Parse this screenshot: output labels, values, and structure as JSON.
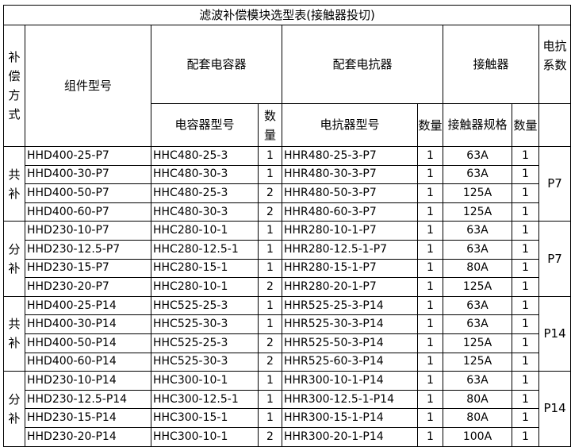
{
  "title": "滤波补偿模块选型表(接触器投切)",
  "headers": {
    "mode": "补偿方式",
    "model": "组件型号",
    "capacitor_group": "配套电容器",
    "reactor_group": "配套电抗器",
    "contactor_group": "接触器",
    "coefficient": "电抗系数",
    "capacitor_model": "电容器型号",
    "qty": "数量",
    "reactor_model": "电抗器型号",
    "contactor_spec": "接触器规格"
  },
  "groups": [
    {
      "mode": "共补",
      "coefficient": "P7",
      "rows": [
        [
          "HHD400-25-P7",
          "HHC480-25-3",
          "1",
          "HHR480-25-3-P7",
          "1",
          "63A",
          "1"
        ],
        [
          "HHD400-30-P7",
          "HHC480-30-3",
          "1",
          "HHR480-30-3-P7",
          "1",
          "63A",
          "1"
        ],
        [
          "HHD400-50-P7",
          "HHC480-25-3",
          "2",
          "HHR480-50-3-P7",
          "1",
          "125A",
          "1"
        ],
        [
          "HHD400-60-P7",
          "HHC480-30-3",
          "2",
          "HHR480-60-3-P7",
          "1",
          "125A",
          "1"
        ]
      ]
    },
    {
      "mode": "分补",
      "coefficient": "P7",
      "rows": [
        [
          "HHD230-10-P7",
          "HHC280-10-1",
          "1",
          "HHR280-10-1-P7",
          "1",
          "63A",
          "1"
        ],
        [
          "HHD230-12.5-P7",
          "HHC280-12.5-1",
          "1",
          "HHR280-12.5-1-P7",
          "1",
          "63A",
          "1"
        ],
        [
          "HHD230-15-P7",
          "HHC280-15-1",
          "1",
          "HHR280-15-1-P7",
          "1",
          "80A",
          "1"
        ],
        [
          "HHD230-20-P7",
          "HHC280-10-1",
          "2",
          "HHR280-20-1-P7",
          "1",
          "125A",
          "1"
        ]
      ]
    },
    {
      "mode": "共补",
      "coefficient": "P14",
      "rows": [
        [
          "HHD400-25-P14",
          "HHC525-25-3",
          "1",
          "HHR525-25-3-P14",
          "1",
          "63A",
          "1"
        ],
        [
          "HHD400-30-P14",
          "HHC525-30-3",
          "1",
          "HHR525-30-3-P14",
          "1",
          "63A",
          "1"
        ],
        [
          "HHD400-50-P14",
          "HHC525-25-3",
          "2",
          "HHR525-50-3-P14",
          "1",
          "125A",
          "1"
        ],
        [
          "HHD400-60-P14",
          "HHC525-30-3",
          "2",
          "HHR525-60-3-P14",
          "1",
          "125A",
          "1"
        ]
      ]
    },
    {
      "mode": "分补",
      "coefficient": "P14",
      "rows": [
        [
          "HHD230-10-P14",
          "HHC300-10-1",
          "1",
          "HHR300-10-1-P14",
          "1",
          "63A",
          "1"
        ],
        [
          "HHD230-12.5-P14",
          "HHC300-12.5-1",
          "1",
          "HHR300-12.5-1-P14",
          "1",
          "80A",
          "1"
        ],
        [
          "HHD230-15-P14",
          "HHC300-15-1",
          "1",
          "HHR300-15-1-P14",
          "1",
          "80A",
          "1"
        ],
        [
          "HHD230-20-P14",
          "HHC300-10-1",
          "2",
          "HHR300-20-1-P14",
          "1",
          "100A",
          "1"
        ]
      ]
    }
  ]
}
